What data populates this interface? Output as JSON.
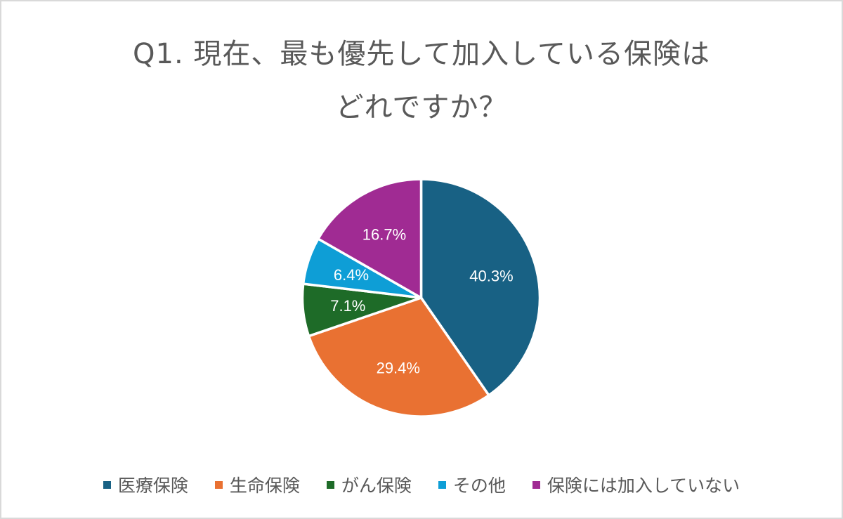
{
  "chart_data": {
    "type": "pie",
    "title": "Q1. 現在、最も優先して加入している保険はどれですか？",
    "title_lines": [
      "Q1. 現在、最も優先して加入している保険は",
      "どれですか？"
    ],
    "categories": [
      "医療保険",
      "生命保険",
      "がん保険",
      "その他",
      "保険には加入していない"
    ],
    "values": [
      40.3,
      29.4,
      7.1,
      6.4,
      16.7
    ],
    "labels": [
      "40.3%",
      "29.4%",
      "7.1%",
      "6.4%",
      "16.7%"
    ],
    "colors": [
      "#186184",
      "#e97132",
      "#1e6b28",
      "#0e9ed6",
      "#a02b93"
    ],
    "start_angle_deg": 0,
    "direction": "clockwise",
    "legend_position": "bottom",
    "unit": "%"
  }
}
